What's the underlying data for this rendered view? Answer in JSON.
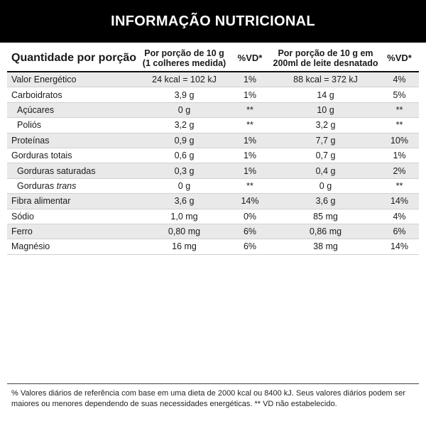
{
  "header": {
    "title": "INFORMAÇÃO NUTRICIONAL"
  },
  "table": {
    "head": {
      "quantity_label": "Quantidade por porção",
      "col1": "Por porção de 10 g (1 colheres medida)",
      "vd1": "%VD*",
      "col2": "Por porção de 10 g em 200ml de leite desnatado",
      "vd2": "%VD*"
    },
    "rows": [
      {
        "label": "Valor Energético",
        "v1": "24 kcal = 102 kJ",
        "vd1": "1%",
        "v2": "88 kcal = 372 kJ",
        "vd2": "4%"
      },
      {
        "label": "Carboidratos",
        "v1": "3,9 g",
        "vd1": "1%",
        "v2": "14 g",
        "vd2": "5%"
      },
      {
        "label": "Açúcares",
        "v1": "0 g",
        "vd1": "**",
        "v2": "10 g",
        "vd2": "**"
      },
      {
        "label": "Poliós",
        "v1": "3,2 g",
        "vd1": "**",
        "v2": "3,2 g",
        "vd2": "**"
      },
      {
        "label": "Proteínas",
        "v1": "0,9 g",
        "vd1": "1%",
        "v2": "7,7 g",
        "vd2": "10%"
      },
      {
        "label": "Gorduras totais",
        "v1": "0,6 g",
        "vd1": "1%",
        "v2": "0,7 g",
        "vd2": "1%"
      },
      {
        "label": "Gorduras saturadas",
        "v1": "0,3 g",
        "vd1": "1%",
        "v2": "0,4 g",
        "vd2": "2%"
      },
      {
        "label_main": "Gorduras",
        "label_italic": "trans",
        "v1": "0 g",
        "vd1": "**",
        "v2": "0 g",
        "vd2": "**"
      },
      {
        "label": "Fibra alimentar",
        "v1": "3,6 g",
        "vd1": "14%",
        "v2": "3,6 g",
        "vd2": "14%"
      },
      {
        "label": "Sódio",
        "v1": "1,0 mg",
        "vd1": "0%",
        "v2": "85 mg",
        "vd2": "4%"
      },
      {
        "label": "Ferro",
        "v1": "0,80 mg",
        "vd1": "6%",
        "v2": "0,86 mg",
        "vd2": "6%"
      },
      {
        "label": "Magnésio",
        "v1": "16 mg",
        "vd1": "6%",
        "v2": "38 mg",
        "vd2": "14%"
      }
    ]
  },
  "footnote": "% Valores diários de referência com base em uma dieta de 2000 kcal ou 8400 kJ. Seus valores diários podem ser maiores ou menores dependendo de suas necessidades energéticas. ** VD não estabelecido."
}
